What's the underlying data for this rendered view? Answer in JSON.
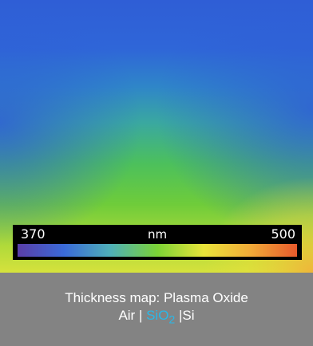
{
  "chart_data": {
    "type": "heatmap",
    "title": "",
    "colorbar": {
      "min_label": "370",
      "max_label": "500",
      "unit": "nm",
      "range": [
        370,
        500
      ],
      "colors": [
        "#5a3ea8",
        "#3a6ad8",
        "#4fb0b8",
        "#7bd236",
        "#e9e43a",
        "#f0aa38",
        "#e85a2c"
      ]
    }
  },
  "caption": {
    "line1": "Thickness map: Plasma Oxide",
    "stack_air": "Air | ",
    "stack_sio": "SiO",
    "stack_sub": "2",
    "stack_si": " |Si"
  },
  "colors": {
    "caption_background": "#838383",
    "accent": "#29b8e8"
  }
}
